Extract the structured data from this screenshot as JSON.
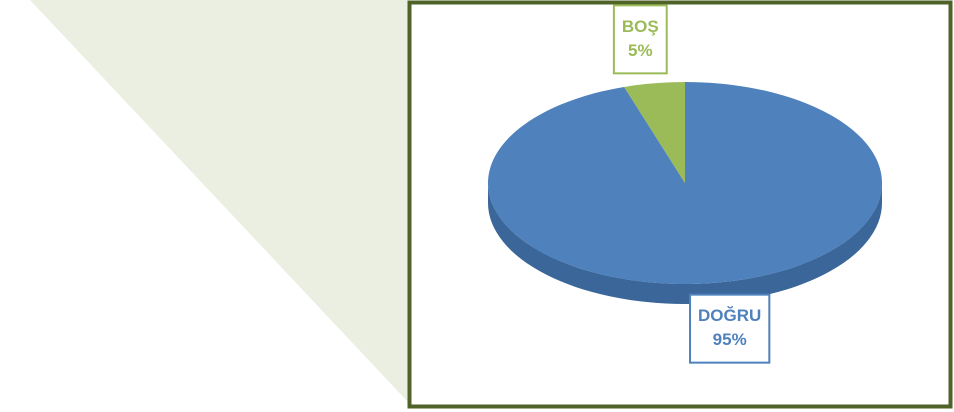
{
  "chart_data": {
    "type": "pie",
    "categories": [
      "DOĞRU",
      "BOŞ"
    ],
    "values": [
      95,
      5
    ],
    "value_labels": [
      "95%",
      "5%"
    ],
    "colors": [
      "#4f81bd",
      "#9bbb59"
    ],
    "side_colors": [
      "#3a6699",
      "#76923c"
    ]
  }
}
